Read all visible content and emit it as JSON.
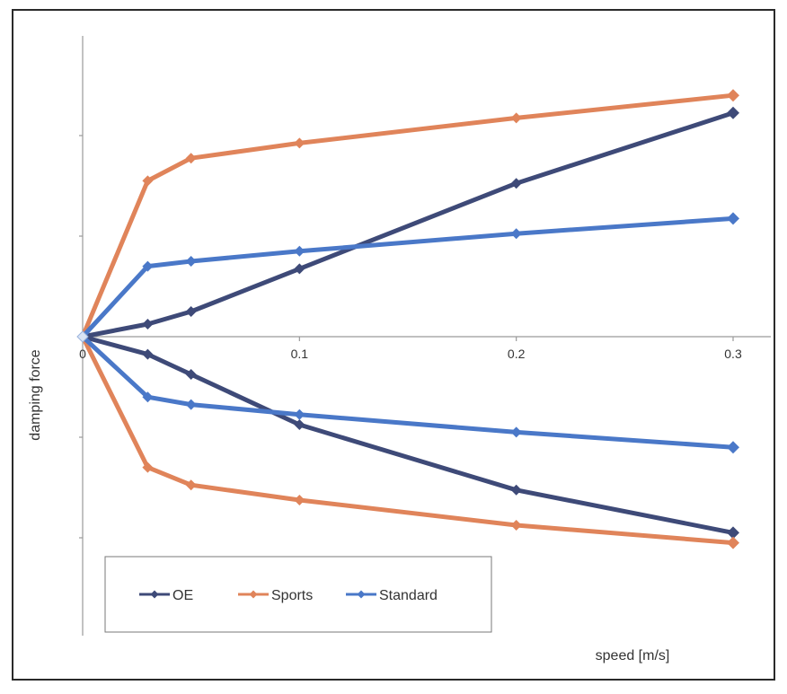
{
  "chart_data": {
    "type": "line",
    "xlabel": "speed [m/s]",
    "ylabel": "damping force",
    "xlim": [
      0,
      0.3
    ],
    "ylim": [
      -6,
      6
    ],
    "x_ticks": [
      0,
      0.1,
      0.2,
      0.3
    ],
    "x_tick_labels": [
      "0",
      "0.1",
      "0.2",
      "0.3"
    ],
    "y_ticks": [
      -4,
      -2,
      2,
      4
    ],
    "y_tick_labels_shown": false,
    "grid": false,
    "legend_position": "bottom-left",
    "series": [
      {
        "name": "OE",
        "color": "#3e4a78",
        "marker": "diamond",
        "branches": [
          {
            "x": [
              0,
              0.03,
              0.05,
              0.1,
              0.2,
              0.3
            ],
            "y": [
              0,
              0.25,
              0.5,
              1.35,
              3.05,
              4.45
            ]
          },
          {
            "x": [
              0,
              0.03,
              0.05,
              0.1,
              0.2,
              0.3
            ],
            "y": [
              0,
              -0.35,
              -0.75,
              -1.75,
              -3.05,
              -3.9
            ]
          }
        ]
      },
      {
        "name": "Sports",
        "color": "#e0845a",
        "marker": "diamond",
        "branches": [
          {
            "x": [
              0,
              0.03,
              0.05,
              0.1,
              0.2,
              0.3
            ],
            "y": [
              0,
              3.1,
              3.55,
              3.85,
              4.35,
              4.8
            ]
          },
          {
            "x": [
              0,
              0.03,
              0.05,
              0.1,
              0.2,
              0.3
            ],
            "y": [
              0,
              -2.6,
              -2.95,
              -3.25,
              -3.75,
              -4.1
            ]
          }
        ]
      },
      {
        "name": "Standard",
        "color": "#4a78c8",
        "marker": "diamond",
        "branches": [
          {
            "x": [
              0,
              0.03,
              0.05,
              0.1,
              0.2,
              0.3
            ],
            "y": [
              0,
              1.4,
              1.5,
              1.7,
              2.05,
              2.35
            ]
          },
          {
            "x": [
              0,
              0.03,
              0.05,
              0.1,
              0.2,
              0.3
            ],
            "y": [
              0,
              -1.2,
              -1.35,
              -1.55,
              -1.9,
              -2.2
            ]
          }
        ]
      }
    ]
  }
}
